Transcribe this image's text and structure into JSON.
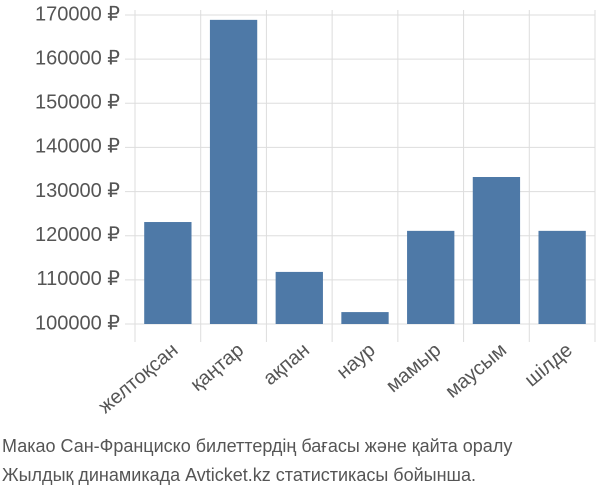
{
  "chart_data": {
    "type": "bar",
    "categories": [
      "желтоқсан",
      "қаңтар",
      "ақпан",
      "наур",
      "мамыр",
      "маусым",
      "шілде"
    ],
    "values": [
      123100,
      168900,
      111800,
      102700,
      121100,
      133300,
      121100
    ],
    "color": "#4e79a7",
    "ylim": [
      100000,
      170000
    ],
    "yticks": [
      {
        "value": 100000,
        "label": "100000 ₽"
      },
      {
        "value": 110000,
        "label": "110000 ₽"
      },
      {
        "value": 120000,
        "label": "120000 ₽"
      },
      {
        "value": 130000,
        "label": "130000 ₽"
      },
      {
        "value": 140000,
        "label": "140000 ₽"
      },
      {
        "value": 150000,
        "label": "150000 ₽"
      },
      {
        "value": 160000,
        "label": "160000 ₽"
      },
      {
        "value": 170000,
        "label": "170000 ₽"
      }
    ],
    "grid": true,
    "caption": [
      "Макао Сан-Франциско билеттердің бағасы және қайта оралу",
      "Жылдық динамикада Avticket.kz статистикасы бойынша."
    ]
  }
}
